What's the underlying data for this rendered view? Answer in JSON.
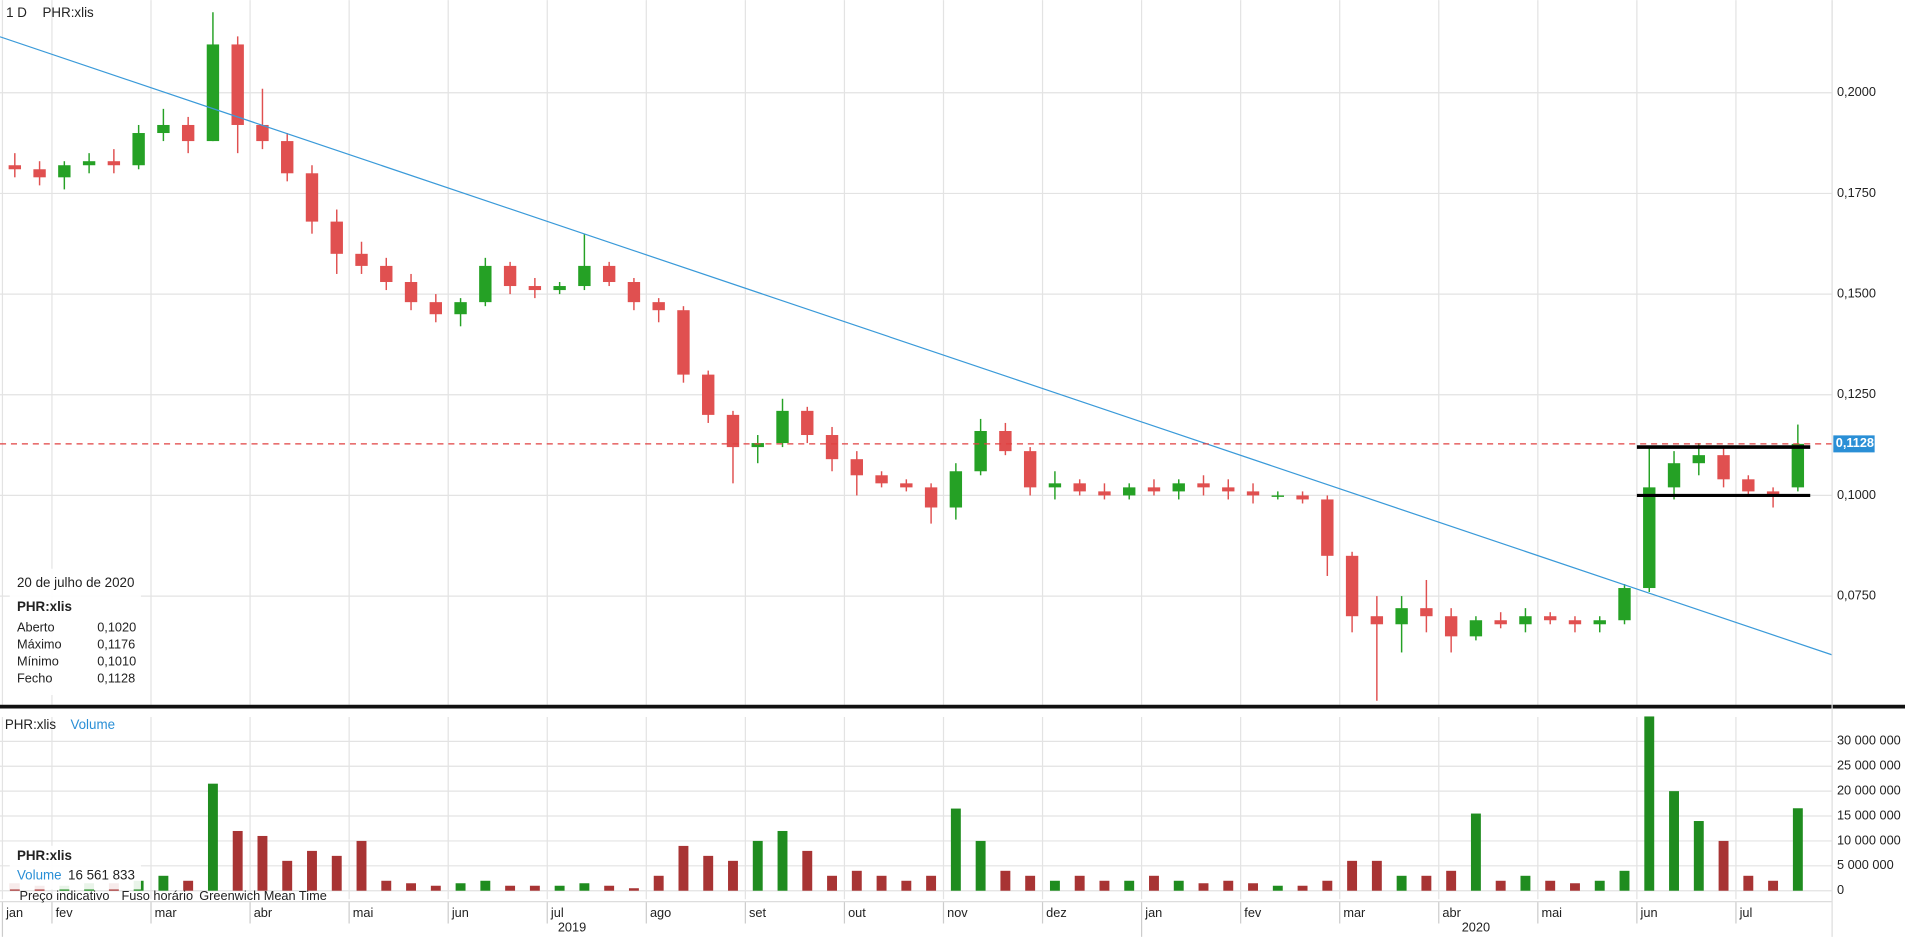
{
  "header": {
    "interval": "1 D",
    "symbol": "PHR:xlis"
  },
  "chart_data": [
    {
      "type": "candlestick",
      "x": [
        "2019-01",
        "2019-01",
        "2019-02",
        "2019-02",
        "2019-02",
        "2019-02",
        "2019-03",
        "2019-03",
        "2019-03",
        "2019-03",
        "2019-04",
        "2019-04",
        "2019-04",
        "2019-04",
        "2019-05",
        "2019-05",
        "2019-05",
        "2019-05",
        "2019-06",
        "2019-06",
        "2019-06",
        "2019-06",
        "2019-07",
        "2019-07",
        "2019-07",
        "2019-07",
        "2019-08",
        "2019-08",
        "2019-08",
        "2019-08",
        "2019-09",
        "2019-09",
        "2019-09",
        "2019-09",
        "2019-10",
        "2019-10",
        "2019-10",
        "2019-10",
        "2019-11",
        "2019-11",
        "2019-11",
        "2019-11",
        "2019-12",
        "2019-12",
        "2019-12",
        "2019-12",
        "2020-01",
        "2020-01",
        "2020-01",
        "2020-01",
        "2020-02",
        "2020-02",
        "2020-02",
        "2020-02",
        "2020-03",
        "2020-03",
        "2020-03",
        "2020-03",
        "2020-04",
        "2020-04",
        "2020-04",
        "2020-04",
        "2020-05",
        "2020-05",
        "2020-05",
        "2020-05",
        "2020-06",
        "2020-06",
        "2020-06",
        "2020-06",
        "2020-07",
        "2020-07",
        "2020-07"
      ],
      "ohlc": [
        [
          0.182,
          0.185,
          0.179,
          0.181
        ],
        [
          0.181,
          0.183,
          0.177,
          0.179
        ],
        [
          0.179,
          0.183,
          0.176,
          0.182
        ],
        [
          0.182,
          0.185,
          0.18,
          0.183
        ],
        [
          0.183,
          0.186,
          0.18,
          0.182
        ],
        [
          0.182,
          0.192,
          0.181,
          0.19
        ],
        [
          0.19,
          0.196,
          0.188,
          0.192
        ],
        [
          0.192,
          0.194,
          0.185,
          0.188
        ],
        [
          0.188,
          0.22,
          0.188,
          0.212
        ],
        [
          0.212,
          0.214,
          0.185,
          0.192
        ],
        [
          0.192,
          0.201,
          0.186,
          0.188
        ],
        [
          0.188,
          0.19,
          0.178,
          0.18
        ],
        [
          0.18,
          0.182,
          0.165,
          0.168
        ],
        [
          0.168,
          0.171,
          0.155,
          0.16
        ],
        [
          0.16,
          0.163,
          0.155,
          0.157
        ],
        [
          0.157,
          0.159,
          0.151,
          0.153
        ],
        [
          0.153,
          0.155,
          0.146,
          0.148
        ],
        [
          0.148,
          0.15,
          0.143,
          0.145
        ],
        [
          0.145,
          0.149,
          0.142,
          0.148
        ],
        [
          0.148,
          0.159,
          0.147,
          0.157
        ],
        [
          0.157,
          0.158,
          0.15,
          0.152
        ],
        [
          0.152,
          0.154,
          0.149,
          0.151
        ],
        [
          0.151,
          0.153,
          0.15,
          0.152
        ],
        [
          0.152,
          0.165,
          0.151,
          0.157
        ],
        [
          0.157,
          0.158,
          0.152,
          0.153
        ],
        [
          0.153,
          0.154,
          0.146,
          0.148
        ],
        [
          0.148,
          0.149,
          0.143,
          0.146
        ],
        [
          0.146,
          0.147,
          0.128,
          0.13
        ],
        [
          0.13,
          0.131,
          0.118,
          0.12
        ],
        [
          0.12,
          0.121,
          0.103,
          0.112
        ],
        [
          0.112,
          0.115,
          0.108,
          0.113
        ],
        [
          0.113,
          0.124,
          0.112,
          0.121
        ],
        [
          0.121,
          0.122,
          0.113,
          0.115
        ],
        [
          0.115,
          0.117,
          0.106,
          0.109
        ],
        [
          0.109,
          0.111,
          0.1,
          0.105
        ],
        [
          0.105,
          0.106,
          0.102,
          0.103
        ],
        [
          0.103,
          0.104,
          0.101,
          0.102
        ],
        [
          0.102,
          0.103,
          0.093,
          0.097
        ],
        [
          0.097,
          0.108,
          0.094,
          0.106
        ],
        [
          0.106,
          0.119,
          0.105,
          0.116
        ],
        [
          0.116,
          0.118,
          0.11,
          0.111
        ],
        [
          0.111,
          0.112,
          0.1,
          0.102
        ],
        [
          0.102,
          0.106,
          0.099,
          0.103
        ],
        [
          0.103,
          0.104,
          0.1,
          0.101
        ],
        [
          0.101,
          0.103,
          0.099,
          0.1
        ],
        [
          0.1,
          0.103,
          0.099,
          0.102
        ],
        [
          0.102,
          0.104,
          0.1,
          0.101
        ],
        [
          0.101,
          0.104,
          0.099,
          0.103
        ],
        [
          0.103,
          0.105,
          0.1,
          0.102
        ],
        [
          0.102,
          0.104,
          0.099,
          0.101
        ],
        [
          0.101,
          0.103,
          0.098,
          0.1
        ],
        [
          0.1,
          0.101,
          0.099,
          0.1
        ],
        [
          0.1,
          0.101,
          0.098,
          0.099
        ],
        [
          0.099,
          0.1,
          0.08,
          0.085
        ],
        [
          0.085,
          0.086,
          0.066,
          0.07
        ],
        [
          0.07,
          0.075,
          0.049,
          0.068
        ],
        [
          0.068,
          0.075,
          0.061,
          0.072
        ],
        [
          0.072,
          0.079,
          0.066,
          0.07
        ],
        [
          0.07,
          0.072,
          0.061,
          0.065
        ],
        [
          0.065,
          0.07,
          0.064,
          0.069
        ],
        [
          0.069,
          0.071,
          0.067,
          0.068
        ],
        [
          0.068,
          0.072,
          0.066,
          0.07
        ],
        [
          0.07,
          0.071,
          0.068,
          0.069
        ],
        [
          0.069,
          0.07,
          0.066,
          0.068
        ],
        [
          0.068,
          0.07,
          0.066,
          0.069
        ],
        [
          0.069,
          0.078,
          0.068,
          0.077
        ],
        [
          0.077,
          0.112,
          0.076,
          0.102
        ],
        [
          0.102,
          0.111,
          0.099,
          0.108
        ],
        [
          0.108,
          0.113,
          0.105,
          0.11
        ],
        [
          0.11,
          0.112,
          0.102,
          0.104
        ],
        [
          0.104,
          0.105,
          0.1,
          0.101
        ],
        [
          0.101,
          0.102,
          0.097,
          0.1
        ],
        [
          0.102,
          0.1176,
          0.101,
          0.1128
        ]
      ],
      "colors": {
        "up": "#25a125",
        "down": "#e05050"
      },
      "ylim": [
        0.048,
        0.223
      ],
      "yticks": [
        {
          "value": 0.075,
          "label": "0,0750"
        },
        {
          "value": 0.1,
          "label": "0,1000"
        },
        {
          "value": 0.125,
          "label": "0,1250"
        },
        {
          "value": 0.15,
          "label": "0,1500"
        },
        {
          "value": 0.175,
          "label": "0,1750"
        },
        {
          "value": 0.2,
          "label": "0,2000"
        }
      ],
      "xticks": [
        {
          "value": "2019-01",
          "label": "jan"
        },
        {
          "value": "2019-02",
          "label": "fev"
        },
        {
          "value": "2019-03",
          "label": "mar"
        },
        {
          "value": "2019-04",
          "label": "abr"
        },
        {
          "value": "2019-05",
          "label": "mai"
        },
        {
          "value": "2019-06",
          "label": "jun"
        },
        {
          "value": "2019-07",
          "label": "jul"
        },
        {
          "value": "2019-08",
          "label": "ago"
        },
        {
          "value": "2019-09",
          "label": "set"
        },
        {
          "value": "2019-10",
          "label": "out"
        },
        {
          "value": "2019-11",
          "label": "nov"
        },
        {
          "value": "2019-12",
          "label": "dez"
        },
        {
          "value": "2020-01",
          "label": "jan"
        },
        {
          "value": "2020-02",
          "label": "fev"
        },
        {
          "value": "2020-03",
          "label": "mar"
        },
        {
          "value": "2020-04",
          "label": "abr"
        },
        {
          "value": "2020-05",
          "label": "mai"
        },
        {
          "value": "2020-06",
          "label": "jun"
        },
        {
          "value": "2020-07",
          "label": "jul"
        }
      ],
      "years": [
        "2019",
        "2020"
      ],
      "grid": true,
      "last_price": {
        "value": 0.1128,
        "label": "0,1128"
      },
      "trendline": [
        0.2139,
        0.0604
      ],
      "channel": [
        0.112,
        0.1
      ]
    },
    {
      "type": "bar",
      "title": "PHR:xlis",
      "subtitle": "Volume",
      "values": [
        1500000,
        1000000,
        1000000,
        1500000,
        1500000,
        2000000,
        3000000,
        2000000,
        21500000,
        12000000,
        11000000,
        6000000,
        8000000,
        7000000,
        10000000,
        2000000,
        1500000,
        1000000,
        1500000,
        2000000,
        1000000,
        1000000,
        1000000,
        1500000,
        1000000,
        500000,
        3000000,
        9000000,
        7000000,
        6000000,
        10000000,
        12000000,
        8000000,
        3000000,
        4000000,
        3000000,
        2000000,
        3000000,
        16500000,
        10000000,
        4000000,
        3000000,
        2000000,
        3000000,
        2000000,
        2000000,
        3000000,
        2000000,
        1500000,
        2000000,
        1500000,
        1000000,
        1000000,
        2000000,
        6000000,
        6000000,
        3000000,
        3000000,
        4000000,
        15500000,
        2000000,
        3000000,
        2000000,
        1500000,
        2000000,
        4000000,
        35000000,
        20000000,
        14000000,
        10000000,
        3000000,
        2000000,
        16561833
      ],
      "colors": {
        "up": "#1f8c1f",
        "down": "#a83434"
      },
      "ylim": [
        -1700000,
        34900000
      ],
      "yticks": [
        0,
        {
          "value": 5000000,
          "label": "5 000 000"
        },
        {
          "value": 10000000,
          "label": "10 000 000"
        },
        {
          "value": 15000000,
          "label": "15 000 000"
        },
        {
          "value": 20000000,
          "label": "20 000 000"
        },
        {
          "value": 25000000,
          "label": "25 000 000"
        },
        {
          "value": 30000000,
          "label": "30 000 000"
        }
      ],
      "grid": true
    }
  ],
  "info": {
    "date": "20 de julho de 2020",
    "symbol": "PHR:xlis",
    "rows": [
      [
        "Aberto",
        "0,1020"
      ],
      [
        "Máximo",
        "0,1176"
      ],
      [
        "Mínimo",
        "0,1010"
      ],
      [
        "Fecho",
        "0,1128"
      ]
    ]
  },
  "volume_info": {
    "symbol": "PHR:xlis",
    "label": "Volume",
    "value": "16 561 833"
  },
  "footer": [
    "Preço indicativo",
    "Fuso horário",
    "Greenwich Mean Time"
  ]
}
